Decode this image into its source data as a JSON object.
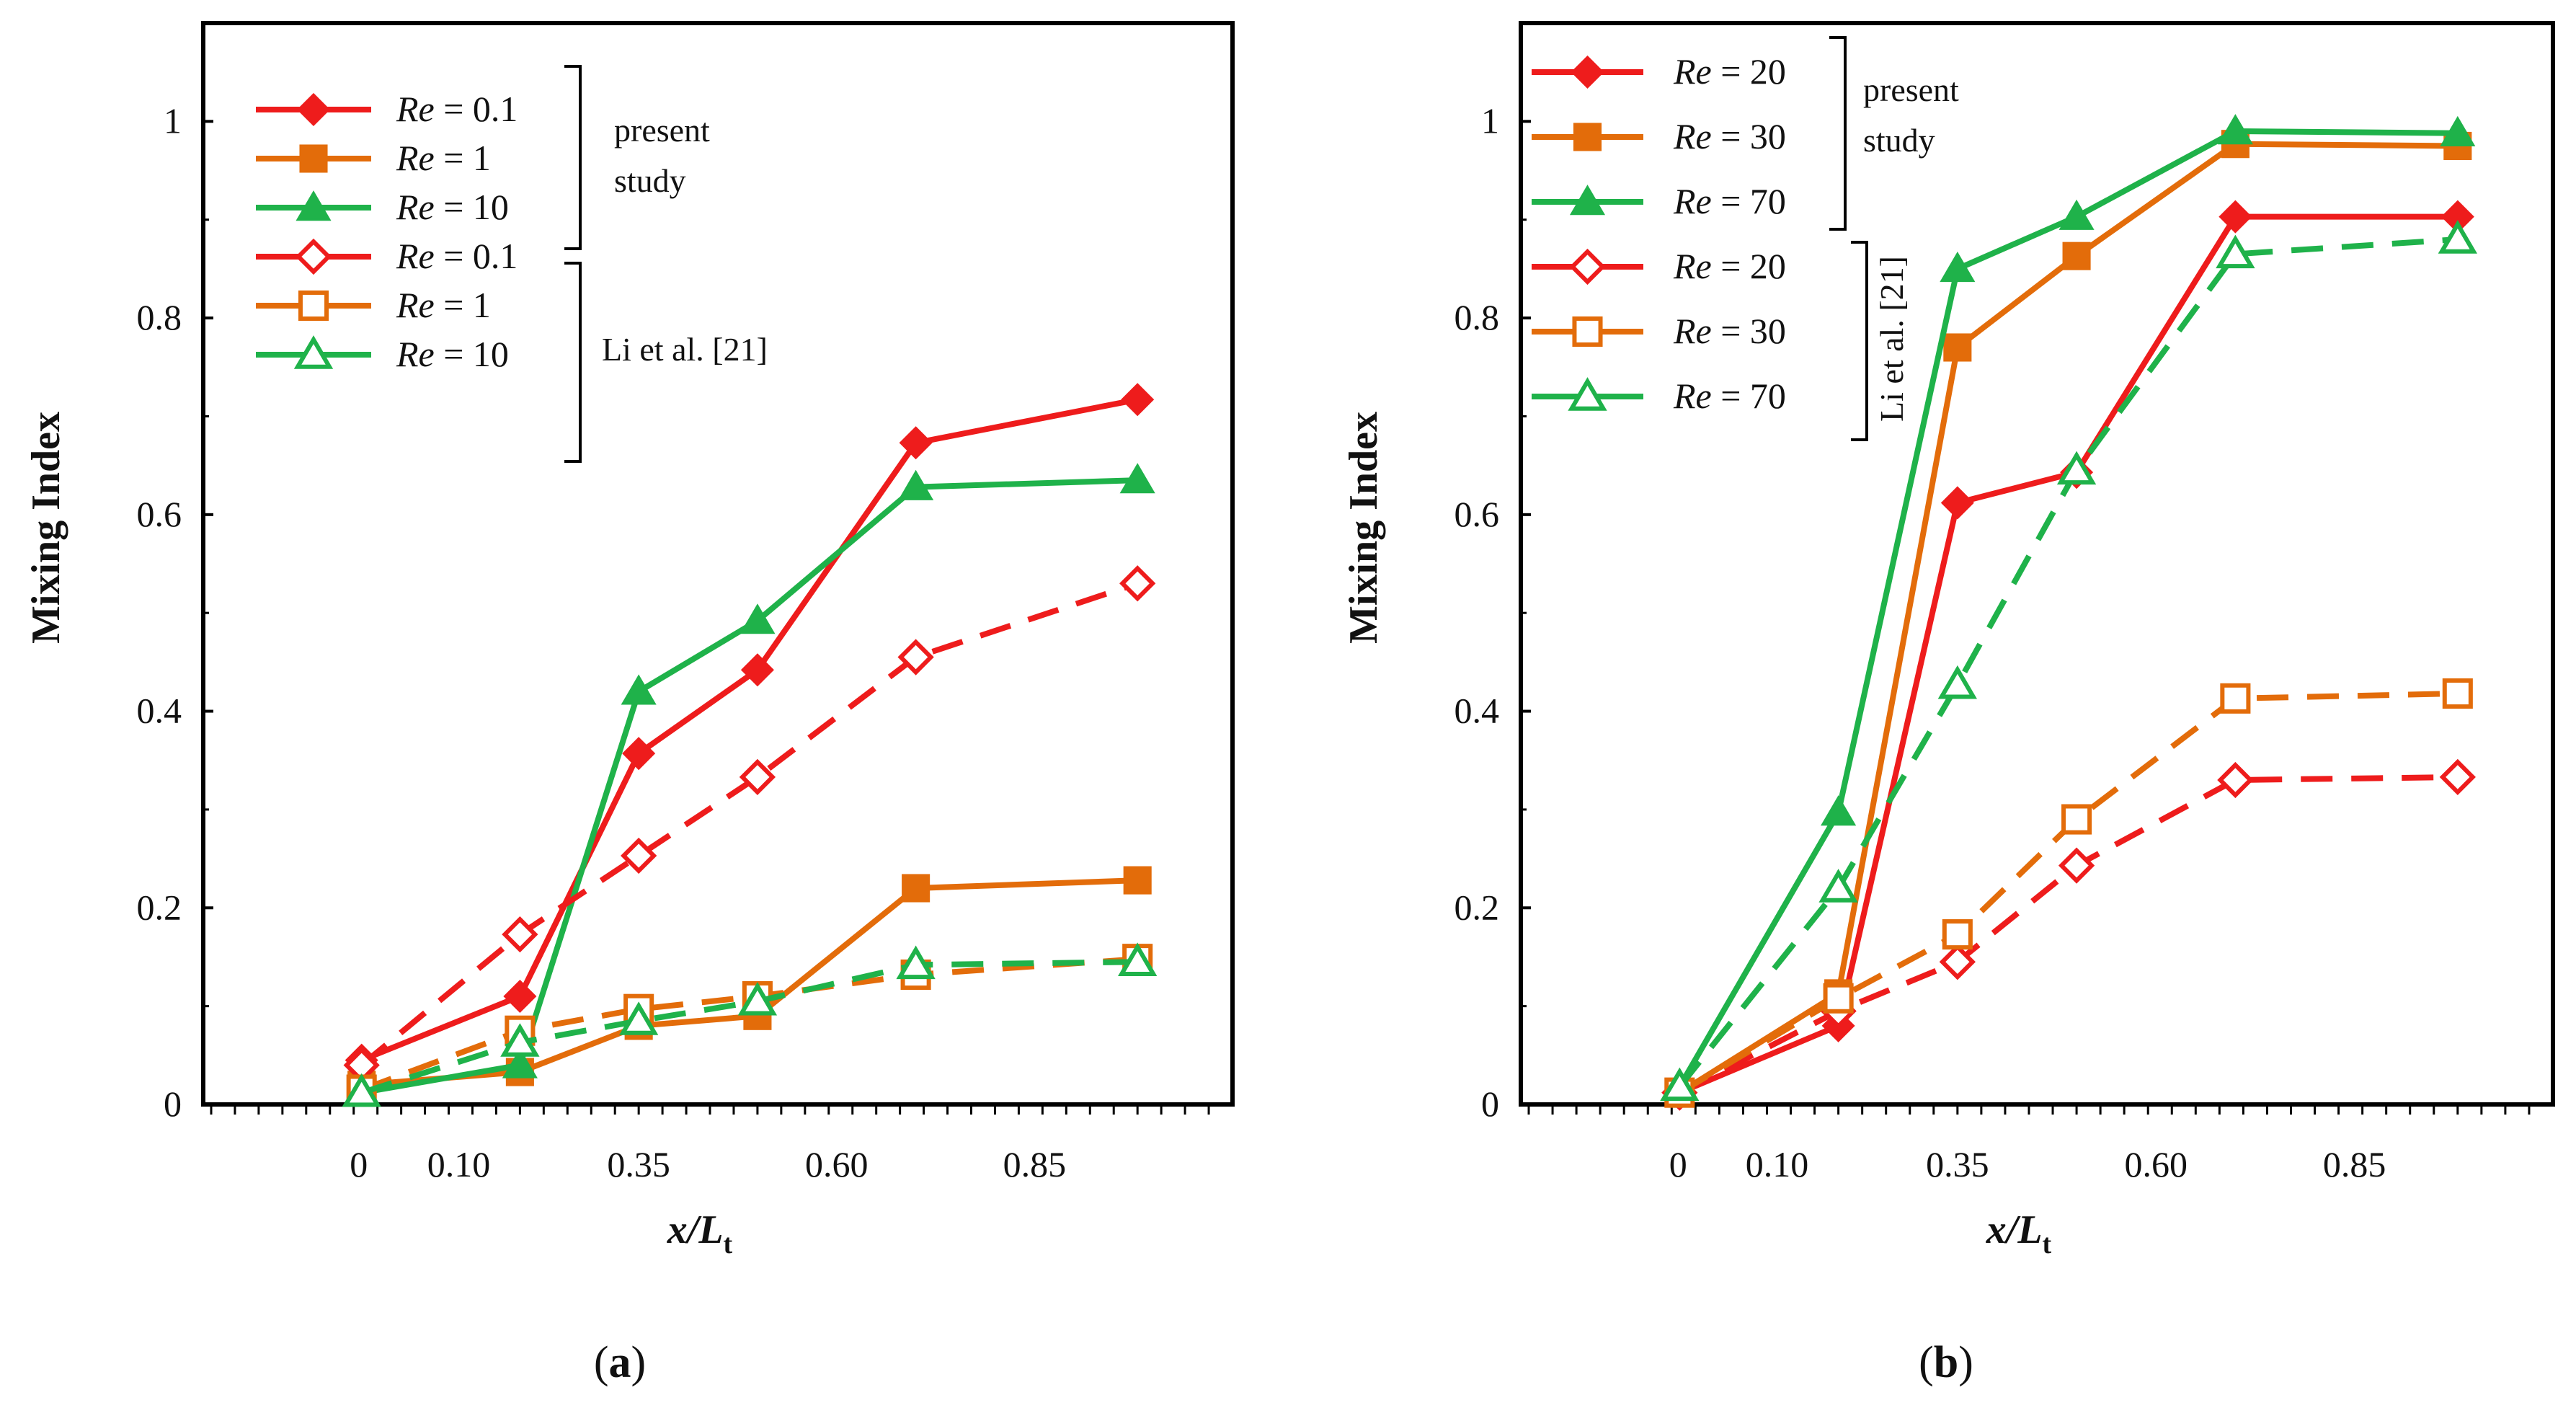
{
  "colors": {
    "red": "#ee1c1c",
    "orange": "#e36c0a",
    "green": "#1fb24a",
    "axis": "#000000"
  },
  "figure": {
    "x_tick_labels": [
      "0",
      "0.10",
      "0.35",
      "0.60",
      "0.85"
    ],
    "y_tick_labels": [
      "0",
      "0.2",
      "0.4",
      "0.6",
      "0.8",
      "1"
    ]
  },
  "chart_data": [
    {
      "type": "line",
      "panel_label_open": "(",
      "panel_label_letter": "a",
      "panel_label_close": ")",
      "xlabel_main": "x/L",
      "xlabel_sub": "t",
      "ylabel": "Mixing Index",
      "ylim": [
        0,
        1.1
      ],
      "x_ticks": [
        0,
        0.1,
        0.35,
        0.6,
        0.85
      ],
      "legend_groups": [
        {
          "label_lines": [
            "present",
            "study"
          ],
          "orientation": "horizontal"
        },
        {
          "label_lines": [
            "Li et al. [21]"
          ],
          "orientation": "horizontal"
        }
      ],
      "series": [
        {
          "name": "Re = 0.1",
          "name_pre": "Re",
          "name_post": " = 0.1",
          "color": "red",
          "marker": "diamond",
          "filled": true,
          "dashed": false,
          "x": [
            0,
            0.2,
            0.35,
            0.5,
            0.7,
            0.98
          ],
          "y": [
            0.045,
            0.11,
            0.357,
            0.442,
            0.673,
            0.717
          ]
        },
        {
          "name": "Re = 1",
          "name_pre": "Re",
          "name_post": " = 1",
          "color": "orange",
          "marker": "square",
          "filled": true,
          "dashed": false,
          "x": [
            0,
            0.2,
            0.35,
            0.5,
            0.7,
            0.98
          ],
          "y": [
            0.02,
            0.033,
            0.08,
            0.09,
            0.22,
            0.228
          ]
        },
        {
          "name": "Re = 10",
          "name_pre": "Re",
          "name_post": " = 10",
          "color": "green",
          "marker": "triangle",
          "filled": true,
          "dashed": false,
          "x": [
            0,
            0.2,
            0.35,
            0.5,
            0.7,
            0.98
          ],
          "y": [
            0.012,
            0.04,
            0.42,
            0.492,
            0.628,
            0.635
          ]
        },
        {
          "name": "Re = 0.1",
          "name_pre": "Re",
          "name_post": " = 0.1",
          "color": "red",
          "marker": "diamond",
          "filled": false,
          "dashed": true,
          "x": [
            0,
            0.2,
            0.35,
            0.5,
            0.7,
            0.98
          ],
          "y": [
            0.04,
            0.173,
            0.253,
            0.333,
            0.455,
            0.53
          ]
        },
        {
          "name": "Re = 1",
          "name_pre": "Re",
          "name_post": " = 1",
          "color": "orange",
          "marker": "square",
          "filled": false,
          "dashed": true,
          "x": [
            0,
            0.2,
            0.35,
            0.5,
            0.7,
            0.98
          ],
          "y": [
            0.015,
            0.075,
            0.097,
            0.11,
            0.132,
            0.148
          ]
        },
        {
          "name": "Re = 10",
          "name_pre": "Re",
          "name_post": " = 10",
          "color": "green",
          "marker": "triangle",
          "filled": false,
          "dashed": true,
          "x": [
            0,
            0.2,
            0.35,
            0.5,
            0.7,
            0.98
          ],
          "y": [
            0.012,
            0.063,
            0.085,
            0.105,
            0.142,
            0.145
          ]
        }
      ]
    },
    {
      "type": "line",
      "panel_label_open": "(",
      "panel_label_letter": "b",
      "panel_label_close": ")",
      "xlabel_main": "x/L",
      "xlabel_sub": "t",
      "ylabel": "Mixing Index",
      "ylim": [
        0,
        1.1
      ],
      "x_ticks": [
        0,
        0.1,
        0.35,
        0.6,
        0.85
      ],
      "legend_groups": [
        {
          "label_lines": [
            "present",
            "study"
          ],
          "orientation": "horizontal"
        },
        {
          "label_lines": [
            "Li et al. [21]"
          ],
          "orientation": "vertical"
        }
      ],
      "series": [
        {
          "name": "Re = 20",
          "name_pre": "Re",
          "name_post": " = 20",
          "color": "red",
          "marker": "diamond",
          "filled": true,
          "dashed": false,
          "x": [
            0,
            0.2,
            0.35,
            0.5,
            0.7,
            0.98
          ],
          "y": [
            0.012,
            0.08,
            0.612,
            0.643,
            0.903,
            0.903
          ]
        },
        {
          "name": "Re = 30",
          "name_pre": "Re",
          "name_post": " = 30",
          "color": "orange",
          "marker": "square",
          "filled": true,
          "dashed": false,
          "x": [
            0,
            0.2,
            0.35,
            0.5,
            0.7,
            0.98
          ],
          "y": [
            0.012,
            0.113,
            0.77,
            0.863,
            0.977,
            0.975
          ]
        },
        {
          "name": "Re = 70",
          "name_pre": "Re",
          "name_post": " = 70",
          "color": "green",
          "marker": "triangle",
          "filled": true,
          "dashed": false,
          "x": [
            0,
            0.2,
            0.35,
            0.5,
            0.7,
            0.98
          ],
          "y": [
            0.018,
            0.297,
            0.85,
            0.903,
            0.99,
            0.988
          ]
        },
        {
          "name": "Re = 20",
          "name_pre": "Re",
          "name_post": " = 20",
          "color": "red",
          "marker": "diamond",
          "filled": false,
          "dashed": true,
          "x": [
            0,
            0.2,
            0.35,
            0.5,
            0.7,
            0.98
          ],
          "y": [
            0.012,
            0.095,
            0.145,
            0.243,
            0.33,
            0.333
          ]
        },
        {
          "name": "Re = 30",
          "name_pre": "Re",
          "name_post": " = 30",
          "color": "orange",
          "marker": "square",
          "filled": false,
          "dashed": true,
          "x": [
            0,
            0.2,
            0.35,
            0.5,
            0.7,
            0.98
          ],
          "y": [
            0.012,
            0.108,
            0.173,
            0.29,
            0.413,
            0.418
          ]
        },
        {
          "name": "Re = 70",
          "name_pre": "Re",
          "name_post": " = 70",
          "color": "green",
          "marker": "triangle",
          "filled": false,
          "dashed": true,
          "x": [
            0,
            0.2,
            0.35,
            0.5,
            0.7,
            0.98
          ],
          "y": [
            0.018,
            0.22,
            0.427,
            0.645,
            0.865,
            0.88
          ]
        }
      ]
    }
  ]
}
